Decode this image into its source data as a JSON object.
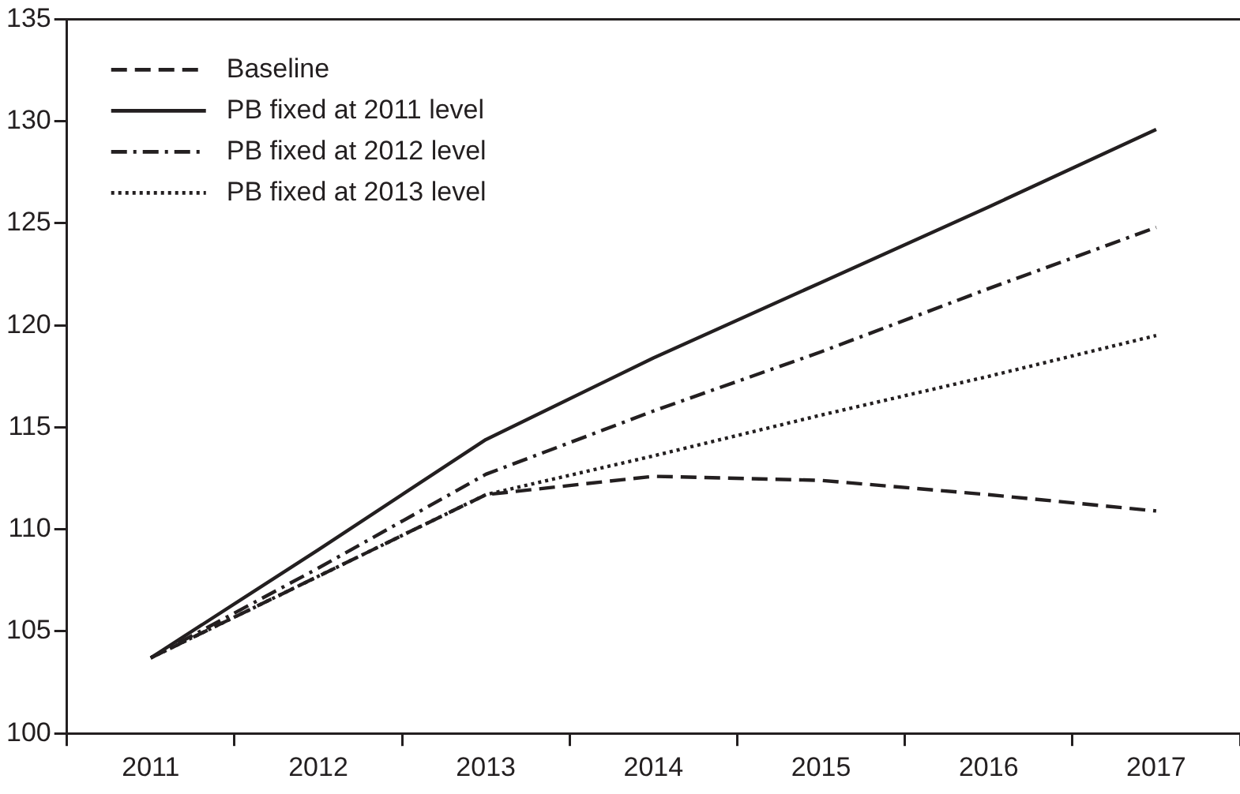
{
  "chart_data": {
    "type": "line",
    "categories": [
      "2011",
      "2012",
      "2013",
      "2014",
      "2015",
      "2016",
      "2017"
    ],
    "series": [
      {
        "name": "Baseline",
        "color": "#231f20",
        "line_style": "dashed",
        "values": [
          103.7,
          107.7,
          111.7,
          112.6,
          112.4,
          111.7,
          110.9
        ]
      },
      {
        "name": "PB fixed at 2011 level",
        "color": "#231f20",
        "line_style": "solid",
        "values": [
          103.7,
          109.0,
          114.4,
          118.4,
          122.1,
          125.8,
          129.6
        ]
      },
      {
        "name": "PB fixed at 2012 level",
        "color": "#231f20",
        "line_style": "dashdot",
        "values": [
          103.7,
          108.1,
          112.7,
          115.8,
          118.7,
          121.8,
          124.8
        ]
      },
      {
        "name": "PB fixed at 2013 level",
        "color": "#231f20",
        "line_style": "dotted",
        "values": [
          103.7,
          107.7,
          111.7,
          113.6,
          115.6,
          117.5,
          119.5
        ]
      }
    ],
    "ylim": [
      100,
      135
    ],
    "yticks": [
      100,
      105,
      110,
      115,
      120,
      125,
      130,
      135
    ],
    "grid": false,
    "legend": "top left",
    "marker": "none"
  }
}
